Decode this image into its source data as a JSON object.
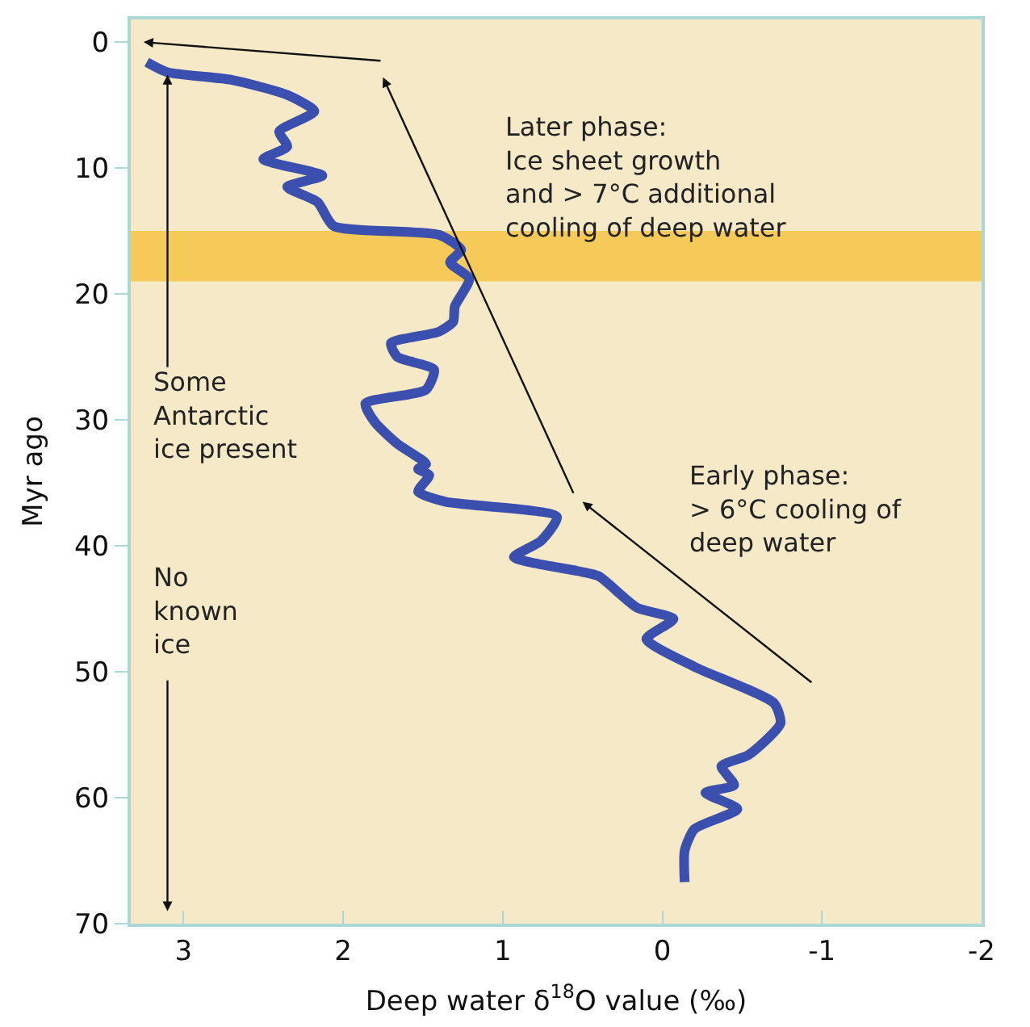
{
  "chart_data": {
    "type": "line",
    "xlabel": "Deep water δ$^{18}$O value (‰)",
    "ylabel": "Myr ago",
    "xlim": [
      3.33,
      -2
    ],
    "xticks": [
      3,
      2,
      1,
      0,
      -1,
      -2
    ],
    "ylim": [
      70,
      -1.8
    ],
    "yticks": [
      0,
      10,
      20,
      30,
      40,
      50,
      60,
      70
    ],
    "grid": false,
    "marker": "none",
    "line_style": "solid",
    "series": [
      {
        "color": "#3b4fae",
        "x": [
          3.23,
          3.1,
          2.7,
          2.35,
          2.18,
          2.4,
          2.35,
          2.5,
          2.13,
          2.35,
          2.16,
          2.06,
          1.4,
          1.26,
          1.33,
          1.21,
          1.3,
          1.31,
          1.4,
          1.7,
          1.66,
          1.43,
          1.48,
          1.86,
          1.8,
          1.66,
          1.48,
          1.53,
          1.46,
          1.53,
          1.36,
          0.66,
          0.76,
          0.93,
          0.53,
          0.4,
          0.16,
          -0.07,
          0.1,
          -0.2,
          -0.7,
          -0.74,
          -0.54,
          -0.37,
          -0.45,
          -0.27,
          -0.47,
          -0.2,
          -0.14,
          -0.14
        ],
        "values": [
          1.6,
          2.4,
          3.0,
          4.2,
          5.5,
          7.1,
          8.3,
          9.3,
          10.6,
          11.5,
          12.7,
          14.6,
          15.3,
          16.5,
          17.5,
          18.8,
          21,
          22.2,
          23,
          23.9,
          25,
          26,
          27.6,
          28.7,
          30.2,
          31.9,
          33.5,
          33.9,
          34.4,
          35.7,
          36.5,
          37.7,
          39.6,
          40.9,
          42,
          42.4,
          44.9,
          45.8,
          47.4,
          49.6,
          52.5,
          54.1,
          56.6,
          57.5,
          59,
          59.6,
          60.9,
          62.5,
          64.2,
          66.7
        ]
      }
    ],
    "bands": [
      {
        "axis": "y",
        "from": 15,
        "to": 19,
        "color": "#f5c445"
      }
    ],
    "annotations": [
      "Later phase:\nIce sheet growth\nand > 7°C additional\ncooling of deep water",
      "Early phase:\n> 6°C cooling of\ndeep water",
      {
        "text": "Some\nAntarctic\nice present",
        "x": 3.1,
        "y": 2.6
      },
      "No\nknown\nice"
    ]
  }
}
